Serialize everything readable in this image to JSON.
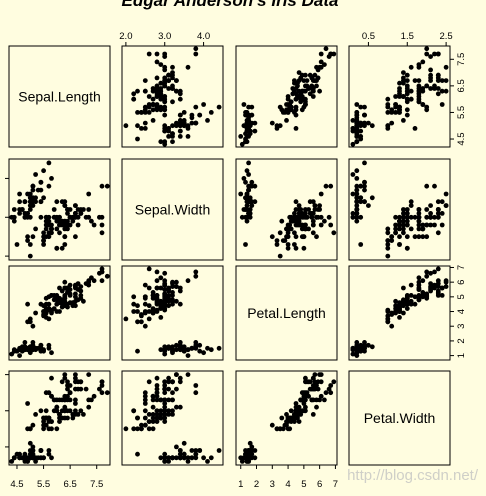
{
  "chart_data": {
    "type": "scatter",
    "title": "Edgar Anderson's Iris Data",
    "variables": [
      "Sepal.Length",
      "Sepal.Width",
      "Petal.Length",
      "Petal.Width"
    ],
    "axis_ranges": {
      "Sepal.Length": [
        4.2,
        8.0
      ],
      "Sepal.Width": [
        1.9,
        4.5
      ],
      "Petal.Length": [
        0.7,
        7.1
      ],
      "Petal.Width": [
        0.0,
        2.6
      ]
    },
    "ticks": {
      "Sepal.Length": [
        "4.5",
        "5.5",
        "6.5",
        "7.5"
      ],
      "Sepal.Width": [
        "2.0",
        "3.0",
        "4.0"
      ],
      "Petal.Length": [
        "1",
        "2",
        "3",
        "4",
        "5",
        "6",
        "7"
      ],
      "Petal.Width": [
        "0.5",
        "1.5",
        "2.5"
      ]
    },
    "tick_values": {
      "Sepal.Length": [
        4.5,
        5.5,
        6.5,
        7.5
      ],
      "Sepal.Width": [
        2.0,
        3.0,
        4.0
      ],
      "Petal.Length": [
        1,
        2,
        3,
        4,
        5,
        6,
        7
      ],
      "Petal.Width": [
        0.5,
        1.5,
        2.5
      ]
    },
    "grid": false,
    "legend": "none",
    "point_color": "#000000",
    "background_color": "#fffde0",
    "columns": [
      "Sepal.Length",
      "Sepal.Width",
      "Petal.Length",
      "Petal.Width"
    ],
    "points": [
      [
        5.1,
        3.5,
        1.4,
        0.2
      ],
      [
        4.9,
        3.0,
        1.4,
        0.2
      ],
      [
        4.7,
        3.2,
        1.3,
        0.2
      ],
      [
        4.6,
        3.1,
        1.5,
        0.2
      ],
      [
        5.0,
        3.6,
        1.4,
        0.2
      ],
      [
        5.4,
        3.9,
        1.7,
        0.4
      ],
      [
        4.6,
        3.4,
        1.4,
        0.3
      ],
      [
        5.0,
        3.4,
        1.5,
        0.2
      ],
      [
        4.4,
        2.9,
        1.4,
        0.2
      ],
      [
        4.9,
        3.1,
        1.5,
        0.1
      ],
      [
        5.4,
        3.7,
        1.5,
        0.2
      ],
      [
        4.8,
        3.4,
        1.6,
        0.2
      ],
      [
        4.8,
        3.0,
        1.4,
        0.1
      ],
      [
        4.3,
        3.0,
        1.1,
        0.1
      ],
      [
        5.8,
        4.0,
        1.2,
        0.2
      ],
      [
        5.7,
        4.4,
        1.5,
        0.4
      ],
      [
        5.4,
        3.9,
        1.3,
        0.4
      ],
      [
        5.1,
        3.5,
        1.4,
        0.3
      ],
      [
        5.7,
        3.8,
        1.7,
        0.3
      ],
      [
        5.1,
        3.8,
        1.5,
        0.3
      ],
      [
        5.4,
        3.4,
        1.7,
        0.2
      ],
      [
        5.1,
        3.7,
        1.5,
        0.4
      ],
      [
        4.6,
        3.6,
        1.0,
        0.2
      ],
      [
        5.1,
        3.3,
        1.7,
        0.5
      ],
      [
        4.8,
        3.4,
        1.9,
        0.2
      ],
      [
        5.0,
        3.0,
        1.6,
        0.2
      ],
      [
        5.0,
        3.4,
        1.6,
        0.4
      ],
      [
        5.2,
        3.5,
        1.5,
        0.2
      ],
      [
        5.2,
        3.4,
        1.4,
        0.2
      ],
      [
        4.7,
        3.2,
        1.6,
        0.2
      ],
      [
        4.8,
        3.1,
        1.6,
        0.2
      ],
      [
        5.4,
        3.4,
        1.5,
        0.4
      ],
      [
        5.2,
        4.1,
        1.5,
        0.1
      ],
      [
        5.5,
        4.2,
        1.4,
        0.2
      ],
      [
        4.9,
        3.1,
        1.5,
        0.2
      ],
      [
        5.0,
        3.2,
        1.2,
        0.2
      ],
      [
        5.5,
        3.5,
        1.3,
        0.2
      ],
      [
        4.9,
        3.6,
        1.4,
        0.1
      ],
      [
        4.4,
        3.0,
        1.3,
        0.2
      ],
      [
        5.1,
        3.4,
        1.5,
        0.2
      ],
      [
        5.0,
        3.5,
        1.3,
        0.3
      ],
      [
        4.5,
        2.3,
        1.3,
        0.3
      ],
      [
        4.4,
        3.2,
        1.3,
        0.2
      ],
      [
        5.0,
        3.5,
        1.6,
        0.6
      ],
      [
        5.1,
        3.8,
        1.9,
        0.4
      ],
      [
        4.8,
        3.0,
        1.4,
        0.3
      ],
      [
        5.1,
        3.8,
        1.6,
        0.2
      ],
      [
        4.6,
        3.2,
        1.4,
        0.2
      ],
      [
        5.3,
        3.7,
        1.5,
        0.2
      ],
      [
        5.0,
        3.3,
        1.4,
        0.2
      ],
      [
        7.0,
        3.2,
        4.7,
        1.4
      ],
      [
        6.4,
        3.2,
        4.5,
        1.5
      ],
      [
        6.9,
        3.1,
        4.9,
        1.5
      ],
      [
        5.5,
        2.3,
        4.0,
        1.3
      ],
      [
        6.5,
        2.8,
        4.6,
        1.5
      ],
      [
        5.7,
        2.8,
        4.5,
        1.3
      ],
      [
        6.3,
        3.3,
        4.7,
        1.6
      ],
      [
        4.9,
        2.4,
        3.3,
        1.0
      ],
      [
        6.6,
        2.9,
        4.6,
        1.3
      ],
      [
        5.2,
        2.7,
        3.9,
        1.4
      ],
      [
        5.0,
        2.0,
        3.5,
        1.0
      ],
      [
        5.9,
        3.0,
        4.2,
        1.5
      ],
      [
        6.0,
        2.2,
        4.0,
        1.0
      ],
      [
        6.1,
        2.9,
        4.7,
        1.4
      ],
      [
        5.6,
        2.9,
        3.6,
        1.3
      ],
      [
        6.7,
        3.1,
        4.4,
        1.4
      ],
      [
        5.6,
        3.0,
        4.5,
        1.5
      ],
      [
        5.8,
        2.7,
        4.1,
        1.0
      ],
      [
        6.2,
        2.2,
        4.5,
        1.5
      ],
      [
        5.6,
        2.5,
        3.9,
        1.1
      ],
      [
        5.9,
        3.2,
        4.8,
        1.8
      ],
      [
        6.1,
        2.8,
        4.0,
        1.3
      ],
      [
        6.3,
        2.5,
        4.9,
        1.5
      ],
      [
        6.1,
        2.8,
        4.7,
        1.2
      ],
      [
        6.4,
        2.9,
        4.3,
        1.3
      ],
      [
        6.6,
        3.0,
        4.4,
        1.4
      ],
      [
        6.8,
        2.8,
        4.8,
        1.4
      ],
      [
        6.7,
        3.0,
        5.0,
        1.7
      ],
      [
        6.0,
        2.9,
        4.5,
        1.5
      ],
      [
        5.7,
        2.6,
        3.5,
        1.0
      ],
      [
        5.5,
        2.4,
        3.8,
        1.1
      ],
      [
        5.5,
        2.4,
        3.7,
        1.0
      ],
      [
        5.8,
        2.7,
        3.9,
        1.2
      ],
      [
        6.0,
        2.7,
        5.1,
        1.6
      ],
      [
        5.4,
        3.0,
        4.5,
        1.5
      ],
      [
        6.0,
        3.4,
        4.5,
        1.6
      ],
      [
        6.7,
        3.1,
        4.7,
        1.5
      ],
      [
        6.3,
        2.3,
        4.4,
        1.3
      ],
      [
        5.6,
        3.0,
        4.1,
        1.3
      ],
      [
        5.5,
        2.5,
        4.0,
        1.3
      ],
      [
        5.5,
        2.6,
        4.4,
        1.2
      ],
      [
        6.1,
        3.0,
        4.6,
        1.4
      ],
      [
        5.8,
        2.6,
        4.0,
        1.2
      ],
      [
        5.0,
        2.3,
        3.3,
        1.0
      ],
      [
        5.6,
        2.7,
        4.2,
        1.3
      ],
      [
        5.7,
        3.0,
        4.2,
        1.2
      ],
      [
        5.7,
        2.9,
        4.2,
        1.3
      ],
      [
        6.2,
        2.9,
        4.3,
        1.3
      ],
      [
        5.1,
        2.5,
        3.0,
        1.1
      ],
      [
        5.7,
        2.8,
        4.1,
        1.3
      ],
      [
        6.3,
        3.3,
        6.0,
        2.5
      ],
      [
        5.8,
        2.7,
        5.1,
        1.9
      ],
      [
        7.1,
        3.0,
        5.9,
        2.1
      ],
      [
        6.3,
        2.9,
        5.6,
        1.8
      ],
      [
        6.5,
        3.0,
        5.8,
        2.2
      ],
      [
        7.6,
        3.0,
        6.6,
        2.1
      ],
      [
        4.9,
        2.5,
        4.5,
        1.7
      ],
      [
        7.3,
        2.9,
        6.3,
        1.8
      ],
      [
        6.7,
        2.5,
        5.8,
        1.8
      ],
      [
        7.2,
        3.6,
        6.1,
        2.5
      ],
      [
        6.5,
        3.2,
        5.1,
        2.0
      ],
      [
        6.4,
        2.7,
        5.3,
        1.9
      ],
      [
        6.8,
        3.0,
        5.5,
        2.1
      ],
      [
        5.7,
        2.5,
        5.0,
        2.0
      ],
      [
        5.8,
        2.8,
        5.1,
        2.4
      ],
      [
        6.4,
        3.2,
        5.3,
        2.3
      ],
      [
        6.5,
        3.0,
        5.5,
        1.8
      ],
      [
        7.7,
        3.8,
        6.7,
        2.2
      ],
      [
        7.7,
        2.6,
        6.9,
        2.3
      ],
      [
        6.0,
        2.2,
        5.0,
        1.5
      ],
      [
        6.9,
        3.2,
        5.7,
        2.3
      ],
      [
        5.6,
        2.8,
        4.9,
        2.0
      ],
      [
        7.7,
        2.8,
        6.7,
        2.0
      ],
      [
        6.3,
        2.7,
        4.9,
        1.8
      ],
      [
        6.7,
        3.3,
        5.7,
        2.1
      ],
      [
        7.2,
        3.2,
        6.0,
        1.8
      ],
      [
        6.2,
        2.8,
        4.8,
        1.8
      ],
      [
        6.1,
        3.0,
        4.9,
        1.8
      ],
      [
        6.4,
        2.8,
        5.6,
        2.1
      ],
      [
        7.2,
        3.0,
        5.8,
        1.6
      ],
      [
        7.4,
        2.8,
        6.1,
        1.9
      ],
      [
        7.9,
        3.8,
        6.4,
        2.0
      ],
      [
        6.4,
        2.8,
        5.6,
        2.2
      ],
      [
        6.3,
        2.8,
        5.1,
        1.5
      ],
      [
        6.1,
        2.6,
        5.6,
        1.4
      ],
      [
        7.7,
        3.0,
        6.1,
        2.3
      ],
      [
        6.3,
        3.4,
        5.6,
        2.4
      ],
      [
        6.4,
        3.1,
        5.5,
        1.8
      ],
      [
        6.0,
        3.0,
        4.8,
        1.8
      ],
      [
        6.9,
        3.1,
        5.4,
        2.1
      ],
      [
        6.7,
        3.1,
        5.6,
        2.4
      ],
      [
        6.9,
        3.1,
        5.1,
        2.3
      ],
      [
        5.8,
        2.7,
        5.1,
        1.9
      ],
      [
        6.8,
        3.2,
        5.9,
        2.3
      ],
      [
        6.7,
        3.3,
        5.7,
        2.5
      ],
      [
        6.7,
        3.0,
        5.2,
        2.3
      ],
      [
        6.3,
        2.5,
        5.0,
        1.9
      ],
      [
        6.5,
        3.0,
        5.2,
        2.0
      ],
      [
        6.2,
        3.4,
        5.4,
        2.3
      ],
      [
        5.9,
        3.0,
        5.1,
        1.8
      ]
    ]
  },
  "watermark": "http://blog.csdn.net/"
}
